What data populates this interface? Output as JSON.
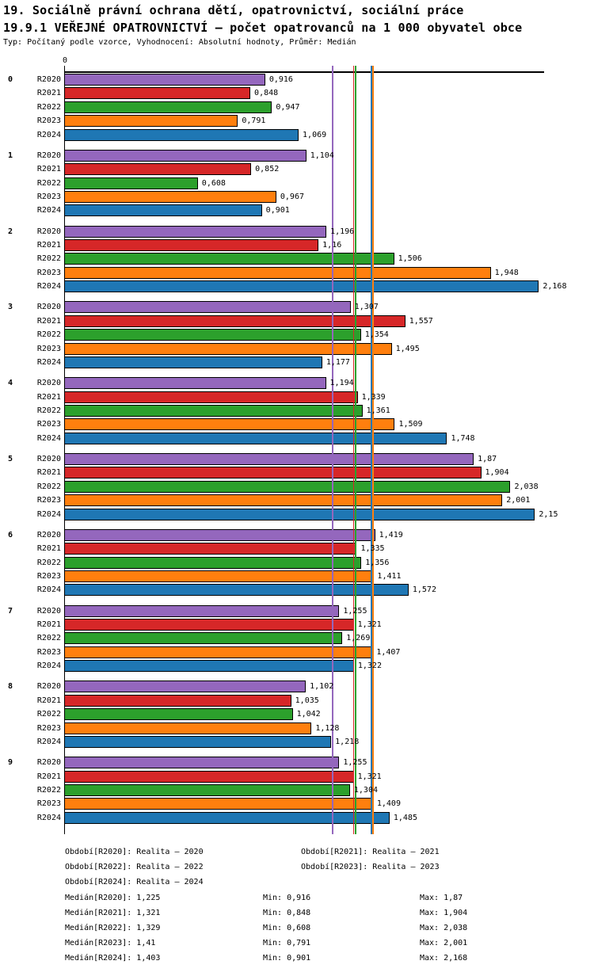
{
  "header": {
    "title_line1": "19. Sociálně právní ochrana dětí, opatrovnictví, sociální práce",
    "title_line2": "19.9.1 VEŘEJNÉ OPATROVNICTVÍ – počet opatrovanců na 1 000 obyvatel obce",
    "meta_line": "Typ: Počítaný podle vzorce, Vyhodnocení: Absolutní hodnoty, Průměr: Medián"
  },
  "chart_data": {
    "type": "bar",
    "orientation": "horizontal",
    "title": "19.9.1 VEŘEJNÉ OPATROVNICTVÍ – počet opatrovanců na 1 000 obyvatel obce",
    "axis_origin_label": "0",
    "xlim": [
      0,
      2.2
    ],
    "grid": false,
    "legend_position": "bottom",
    "series": [
      {
        "name": "R2020",
        "color": "#9467bd",
        "median": 1.225,
        "median_display": "1,225",
        "min": 0.916,
        "max": 1.87
      },
      {
        "name": "R2021",
        "color": "#d62728",
        "median": 1.321,
        "median_display": "1,321",
        "min": 0.848,
        "max": 1.904
      },
      {
        "name": "R2022",
        "color": "#2ca02c",
        "median": 1.329,
        "median_display": "1,329",
        "min": 0.608,
        "max": 2.038
      },
      {
        "name": "R2023",
        "color": "#ff7f0e",
        "median": 1.41,
        "median_display": "1,41",
        "min": 0.791,
        "max": 2.001
      },
      {
        "name": "R2024",
        "color": "#1f77b4",
        "median": 1.403,
        "median_display": "1,403",
        "min": 0.901,
        "max": 2.168
      }
    ],
    "categories": [
      "0",
      "1",
      "2",
      "3",
      "4",
      "5",
      "6",
      "7",
      "8",
      "9"
    ],
    "groups": [
      {
        "label": "0",
        "values": [
          0.916,
          0.848,
          0.947,
          0.791,
          1.069
        ],
        "displays": [
          "0,916",
          "0,848",
          "0,947",
          "0,791",
          "1,069"
        ]
      },
      {
        "label": "1",
        "values": [
          1.104,
          0.852,
          0.608,
          0.967,
          0.901
        ],
        "displays": [
          "1,104",
          "0,852",
          "0,608",
          "0,967",
          "0,901"
        ]
      },
      {
        "label": "2",
        "values": [
          1.196,
          1.16,
          1.506,
          1.948,
          2.168
        ],
        "displays": [
          "1,196",
          "1,16",
          "1,506",
          "1,948",
          "2,168"
        ]
      },
      {
        "label": "3",
        "values": [
          1.307,
          1.557,
          1.354,
          1.495,
          1.177
        ],
        "displays": [
          "1,307",
          "1,557",
          "1,354",
          "1,495",
          "1,177"
        ]
      },
      {
        "label": "4",
        "values": [
          1.194,
          1.339,
          1.361,
          1.509,
          1.748
        ],
        "displays": [
          "1,194",
          "1,339",
          "1,361",
          "1,509",
          "1,748"
        ]
      },
      {
        "label": "5",
        "values": [
          1.87,
          1.904,
          2.038,
          2.001,
          2.15
        ],
        "displays": [
          "1,87",
          "1,904",
          "2,038",
          "2,001",
          "2,15"
        ]
      },
      {
        "label": "6",
        "values": [
          1.419,
          1.335,
          1.356,
          1.411,
          1.572
        ],
        "displays": [
          "1,419",
          "1,335",
          "1,356",
          "1,411",
          "1,572"
        ]
      },
      {
        "label": "7",
        "values": [
          1.255,
          1.321,
          1.269,
          1.407,
          1.322
        ],
        "displays": [
          "1,255",
          "1,321",
          "1,269",
          "1,407",
          "1,322"
        ]
      },
      {
        "label": "8",
        "values": [
          1.102,
          1.035,
          1.042,
          1.128,
          1.218
        ],
        "displays": [
          "1,102",
          "1,035",
          "1,042",
          "1,128",
          "1,218"
        ]
      },
      {
        "label": "9",
        "values": [
          1.255,
          1.321,
          1.304,
          1.409,
          1.485
        ],
        "displays": [
          "1,255",
          "1,321",
          "1,304",
          "1,409",
          "1,485"
        ]
      }
    ]
  },
  "legend": {
    "rows": [
      [
        "Období[R2020]: Realita – 2020",
        "Období[R2021]: Realita – 2021"
      ],
      [
        "Období[R2022]: Realita – 2022",
        "Období[R2023]: Realita – 2023"
      ],
      [
        "Období[R2024]: Realita – 2024"
      ]
    ]
  },
  "stats": {
    "rows": [
      {
        "median": "Medián[R2020]: 1,225",
        "min": "Min: 0,916",
        "max": "Max: 1,87"
      },
      {
        "median": "Medián[R2021]: 1,321",
        "min": "Min: 0,848",
        "max": "Max: 1,904"
      },
      {
        "median": "Medián[R2022]: 1,329",
        "min": "Min: 0,608",
        "max": "Max: 2,038"
      },
      {
        "median": "Medián[R2023]: 1,41",
        "min": "Min: 0,791",
        "max": "Max: 2,001"
      },
      {
        "median": "Medián[R2024]: 1,403",
        "min": "Min: 0,901",
        "max": "Max: 2,168"
      }
    ]
  }
}
